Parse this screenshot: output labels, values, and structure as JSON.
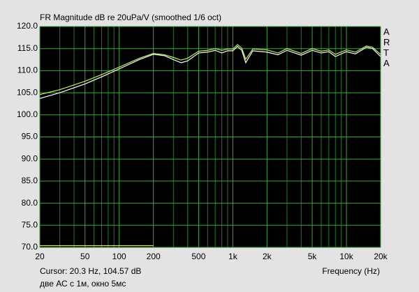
{
  "chart_data": {
    "type": "line",
    "title": "FR Magnitude dB re 20uPa/V (smoothed 1/6 oct)",
    "brand": "ARTA",
    "cursor": "Cursor: 20.3 Hz, 104.57 dB",
    "xlabel": "Frequency (Hz)",
    "note": "две АС с 1м, окно 5мс",
    "xscale": "log",
    "xlim": [
      20,
      20000
    ],
    "ylim": [
      70,
      120
    ],
    "xticks": [
      20,
      50,
      100,
      200,
      500,
      {
        "value": 1000,
        "label": "1k"
      },
      {
        "value": 2000,
        "label": "2k"
      },
      {
        "value": 5000,
        "label": "5k"
      },
      {
        "value": 10000,
        "label": "10k"
      },
      {
        "value": 20000,
        "label": "20k"
      }
    ],
    "xminor": [
      30,
      40,
      60,
      70,
      80,
      90,
      300,
      400,
      600,
      700,
      800,
      900,
      3000,
      4000,
      6000,
      7000,
      8000,
      9000
    ],
    "yticks": [
      {
        "value": 120,
        "label": "120.0"
      },
      {
        "value": 115,
        "label": "115.0"
      },
      {
        "value": 110,
        "label": "110.0"
      },
      {
        "value": 105,
        "label": "105.0"
      },
      {
        "value": 100,
        "label": "100.0"
      },
      {
        "value": 95,
        "label": "95.0"
      },
      {
        "value": 90,
        "label": "90.0"
      },
      {
        "value": 85,
        "label": "85.0"
      },
      {
        "value": 80,
        "label": "80.0"
      },
      {
        "value": 75,
        "label": "75.0"
      },
      {
        "value": 70,
        "label": "70.0"
      }
    ],
    "grid": true,
    "series": [
      {
        "color": "#ffffff",
        "x": [
          20,
          30,
          50,
          70,
          100,
          150,
          200,
          250,
          300,
          350,
          400,
          500,
          600,
          700,
          800,
          900,
          1000,
          1100,
          1200,
          1300,
          1500,
          2000,
          2500,
          3000,
          4000,
          5000,
          6000,
          7000,
          8000,
          10000,
          12000,
          15000,
          17000,
          20000
        ],
        "values": [
          103.7,
          105.0,
          107.0,
          108.6,
          110.4,
          112.5,
          113.7,
          113.4,
          112.5,
          111.8,
          112.2,
          114.0,
          114.2,
          114.6,
          114.0,
          114.5,
          114.5,
          115.5,
          114.6,
          111.8,
          114.5,
          114.2,
          113.6,
          114.6,
          113.5,
          114.6,
          114.0,
          114.3,
          113.2,
          114.3,
          113.8,
          115.3,
          115.0,
          113.2
        ]
      },
      {
        "color": "#b8f060",
        "x": [
          20,
          30,
          50,
          70,
          100,
          150,
          200,
          250,
          300,
          350,
          400,
          500,
          600,
          700,
          800,
          900,
          1000,
          1100,
          1200,
          1300,
          1500,
          2000,
          2500,
          3000,
          4000,
          5000,
          6000,
          7000,
          8000,
          10000,
          12000,
          15000,
          17000,
          20000
        ],
        "values": [
          104.6,
          105.7,
          107.6,
          109.1,
          110.8,
          112.8,
          113.9,
          113.6,
          113.0,
          112.4,
          112.8,
          114.4,
          114.6,
          115.0,
          114.6,
          114.9,
          114.9,
          115.9,
          115.1,
          112.6,
          114.9,
          114.7,
          114.0,
          115.0,
          113.9,
          115.0,
          114.4,
          114.7,
          113.7,
          114.7,
          114.2,
          115.6,
          115.3,
          113.7
        ]
      },
      {
        "color": "#e8df70",
        "x": [
          20,
          200
        ],
        "values": [
          70.4,
          70.4
        ]
      }
    ]
  }
}
